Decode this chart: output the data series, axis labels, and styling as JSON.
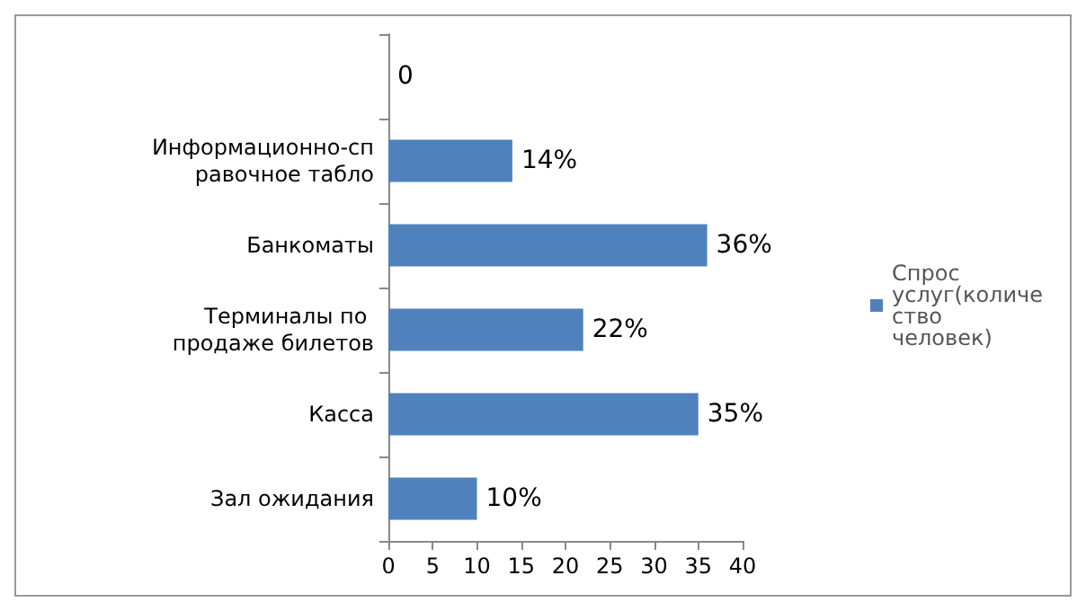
{
  "chart_data": {
    "type": "bar",
    "orientation": "horizontal",
    "categories": [
      null,
      "Информационно-справочное табло",
      "Банкоматы",
      "Терминалы по продаже билетов",
      "Касса",
      "Зал ожидания"
    ],
    "series": [
      {
        "name": "Спрос услуг(количество человек)",
        "color": "#4f81bd",
        "values": [
          0,
          14,
          36,
          22,
          35,
          10
        ],
        "value_labels": [
          "0",
          "14%",
          "36%",
          "22%",
          "35%",
          "10%"
        ]
      }
    ],
    "xlim": [
      0,
      40
    ],
    "xticks": [
      0,
      5,
      10,
      15,
      20,
      25,
      30,
      35,
      40
    ],
    "grid": false,
    "legend": "right"
  }
}
